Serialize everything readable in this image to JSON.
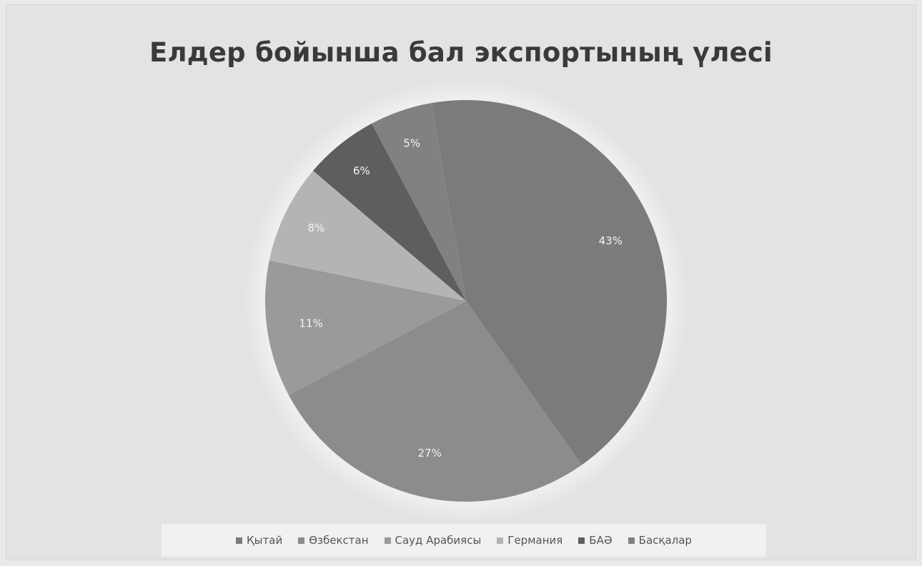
{
  "chart_data": {
    "type": "pie",
    "title": "Елдер бойынша бал экспортының үлесі",
    "categories": [
      "Қытай",
      "Өзбекстан",
      "Сауд Арабиясы",
      "Германия",
      "БАӘ",
      "Басқалар"
    ],
    "values": [
      43,
      27,
      11,
      8,
      6,
      5
    ],
    "labels": [
      "43%",
      "27%",
      "11%",
      "8%",
      "6%",
      "5%"
    ],
    "colors": [
      "#7b7b7b",
      "#8c8c8c",
      "#9a9a9a",
      "#b4b4b4",
      "#5e5e5e",
      "#818181"
    ],
    "legend_position": "bottom"
  }
}
